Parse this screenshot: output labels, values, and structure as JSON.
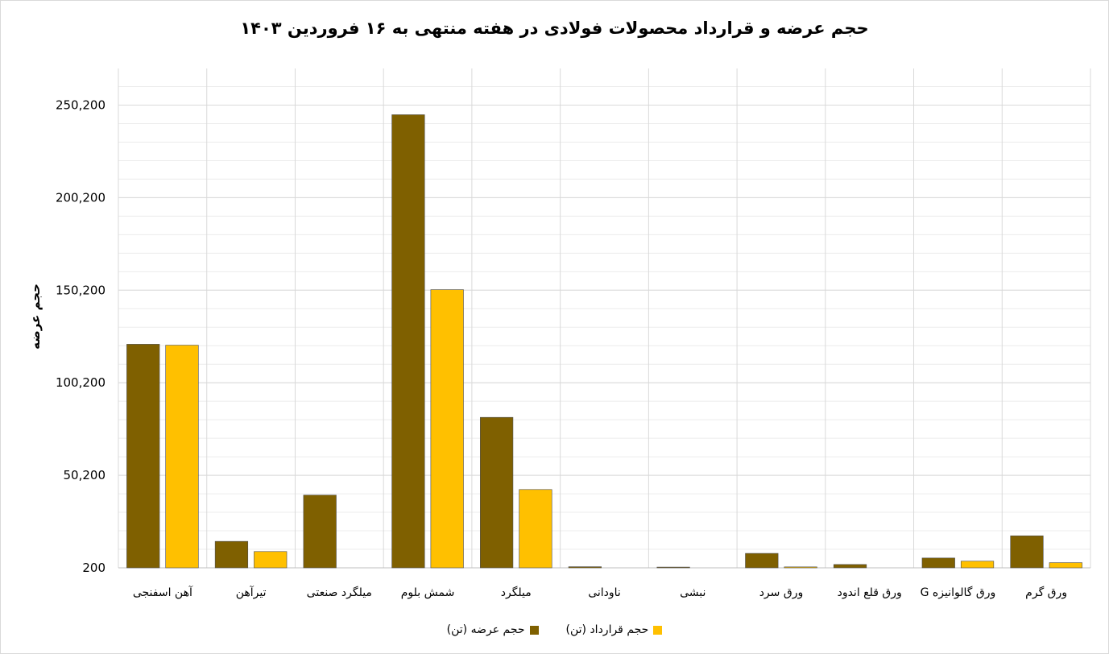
{
  "chart_data": {
    "type": "bar",
    "title": "حجم عرضه و قرارداد محصولات فولادی در هفته منتهی به ۱۶ فروردین ۱۴۰۳",
    "ylabel": "حجم عرضه",
    "xlabel": "",
    "ylim": [
      200,
      270000
    ],
    "yticks": [
      200,
      50200,
      100200,
      150200,
      200200,
      250200
    ],
    "ytick_labels": [
      "200",
      "50,200",
      "100,200",
      "150,200",
      "200,200",
      "250,200"
    ],
    "grid": true,
    "legend_position": "bottom",
    "categories": [
      "آهن اسفنجی",
      "تیرآهن",
      "میلگرد صنعتی",
      "شمش بلوم",
      "میلگرد",
      "ناودانی",
      "نبشی",
      "ورق سرد",
      "ورق قلع اندود",
      "ورق گالوانیزه G",
      "ورق گرم"
    ],
    "series": [
      {
        "name": "حجم عرضه (تن)",
        "color": "#7f6000",
        "values": [
          121000,
          14500,
          39500,
          245000,
          81500,
          800,
          600,
          8000,
          2000,
          5500,
          17500
        ]
      },
      {
        "name": "حجم قرارداد (تن)",
        "color": "#ffc000",
        "values": [
          120500,
          9000,
          0,
          150500,
          42500,
          0,
          0,
          700,
          0,
          3800,
          3000
        ]
      }
    ]
  }
}
